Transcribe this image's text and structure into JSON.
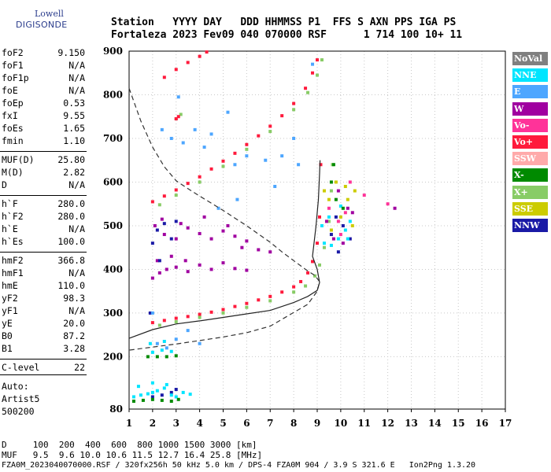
{
  "logo": {
    "line1": "Lowell",
    "line2": "DIGISONDE"
  },
  "header": {
    "row1": "Station   YYYY DAY   DDD HHMMSS P1  FFS S AXN PPS IGA PS",
    "row2": "Fortaleza 2023 Fev09 040 070000 RSF      1 714 100 10+ 11"
  },
  "params": [
    {
      "k": "foF2",
      "v": "9.150"
    },
    {
      "k": "foF1",
      "v": "N/A"
    },
    {
      "k": "foF1p",
      "v": "N/A"
    },
    {
      "k": "foE",
      "v": "N/A"
    },
    {
      "k": "foEp",
      "v": "0.53"
    },
    {
      "k": "fxI",
      "v": "9.55"
    },
    {
      "k": "foEs",
      "v": "1.65"
    },
    {
      "k": "fmin",
      "v": "1.10"
    },
    {
      "k": "MUF(D)",
      "v": "25.80"
    },
    {
      "k": "M(D)",
      "v": "2.82"
    },
    {
      "k": "D",
      "v": "N/A"
    },
    {
      "k": "h`F",
      "v": "280.0"
    },
    {
      "k": "h`F2",
      "v": "280.0"
    },
    {
      "k": "h`E",
      "v": "N/A"
    },
    {
      "k": "h`Es",
      "v": "100.0"
    },
    {
      "k": "hmF2",
      "v": "366.8"
    },
    {
      "k": "hmF1",
      "v": "N/A"
    },
    {
      "k": "hmE",
      "v": "110.0"
    },
    {
      "k": "yF2",
      "v": "98.3"
    },
    {
      "k": "yF1",
      "v": "N/A"
    },
    {
      "k": "yE",
      "v": "20.0"
    },
    {
      "k": "B0",
      "v": "87.2"
    },
    {
      "k": "B1",
      "v": "3.28"
    },
    {
      "k": "C-level",
      "v": "22"
    }
  ],
  "auto": {
    "l1": "Auto:",
    "l2": "Artist5",
    "l3": "500200"
  },
  "footer": {
    "d_row": "D     100  200  400  600  800 1000 1500 3000 [km]",
    "muf_row": "MUF   9.5  9.6 10.0 10.6 11.5 12.7 16.4 25.8 [MHz]",
    "file_row": "FZA0M_2023040070000.RSF / 320fx256h 50 kHz 5.0 km / DPS-4 FZA0M 904 / 3.9 S 321.6 E   Ion2Png 1.3.20"
  },
  "legend": [
    {
      "label": "NoVal",
      "bg": "#808080",
      "fg": "#ffffff"
    },
    {
      "label": "NNE",
      "bg": "#00e5ff",
      "fg": "#ffffff"
    },
    {
      "label": "E",
      "bg": "#4da6ff",
      "fg": "#ffffff"
    },
    {
      "label": "W",
      "bg": "#a000a0",
      "fg": "#ffffff"
    },
    {
      "label": "Vo-",
      "bg": "#ff3399",
      "fg": "#ffffff"
    },
    {
      "label": "Vo+",
      "bg": "#ff1a3c",
      "fg": "#ffffff"
    },
    {
      "label": "SSW",
      "bg": "#ffaaaa",
      "fg": "#ffffff"
    },
    {
      "label": "X-",
      "bg": "#008a00",
      "fg": "#ffffff"
    },
    {
      "label": "X+",
      "bg": "#88cc66",
      "fg": "#ffffff"
    },
    {
      "label": "SSE",
      "bg": "#cccc00",
      "fg": "#ffffff"
    },
    {
      "label": "NNW",
      "bg": "#1a1aa6",
      "fg": "#ffffff"
    }
  ],
  "chart_data": {
    "type": "scatter",
    "xlim": [
      1,
      17
    ],
    "ylim": [
      80,
      900
    ],
    "x_ticks": [
      1,
      2,
      3,
      4,
      5,
      6,
      7,
      8,
      9,
      10,
      11,
      12,
      13,
      14,
      15,
      16,
      17
    ],
    "y_ticks": [
      80,
      200,
      300,
      400,
      500,
      600,
      700,
      800,
      900
    ],
    "grid": true,
    "series": [
      {
        "color": "#ff1a3c",
        "points": [
          [
            2.0,
            278
          ],
          [
            2.5,
            283
          ],
          [
            3.0,
            288
          ],
          [
            3.5,
            292
          ],
          [
            4.0,
            297
          ],
          [
            4.5,
            302
          ],
          [
            5.0,
            308
          ],
          [
            5.5,
            315
          ],
          [
            6.0,
            322
          ],
          [
            6.5,
            330
          ],
          [
            7.0,
            338
          ],
          [
            7.5,
            348
          ],
          [
            8.0,
            360
          ],
          [
            8.3,
            372
          ],
          [
            8.6,
            392
          ],
          [
            8.8,
            418
          ],
          [
            9.0,
            460
          ],
          [
            9.1,
            520
          ],
          [
            9.15,
            640
          ]
        ]
      },
      {
        "color": "#88cc66",
        "points": [
          [
            2.3,
            272
          ],
          [
            3.0,
            280
          ],
          [
            4.0,
            290
          ],
          [
            5.0,
            300
          ],
          [
            6.0,
            313
          ],
          [
            7.0,
            328
          ],
          [
            8.0,
            348
          ],
          [
            8.5,
            362
          ],
          [
            8.9,
            385
          ],
          [
            9.1,
            410
          ],
          [
            9.3,
            450
          ],
          [
            9.5,
            510
          ],
          [
            9.6,
            580
          ],
          [
            9.65,
            640
          ]
        ]
      },
      {
        "color": "#ff1a3c",
        "points": [
          [
            2.0,
            555
          ],
          [
            2.5,
            568
          ],
          [
            3.0,
            582
          ],
          [
            3.5,
            597
          ],
          [
            4.0,
            612
          ],
          [
            4.5,
            630
          ],
          [
            5.0,
            648
          ],
          [
            5.5,
            666
          ],
          [
            6.0,
            686
          ],
          [
            6.5,
            706
          ],
          [
            7.0,
            728
          ],
          [
            7.5,
            752
          ],
          [
            8.0,
            780
          ],
          [
            8.5,
            815
          ],
          [
            8.8,
            850
          ],
          [
            9.0,
            880
          ]
        ]
      },
      {
        "color": "#88cc66",
        "points": [
          [
            2.3,
            548
          ],
          [
            3.0,
            570
          ],
          [
            4.0,
            600
          ],
          [
            5.0,
            636
          ],
          [
            6.0,
            675
          ],
          [
            7.0,
            716
          ],
          [
            8.0,
            766
          ],
          [
            8.6,
            805
          ],
          [
            9.0,
            845
          ],
          [
            9.2,
            880
          ]
        ]
      },
      {
        "color": "#ff1a3c",
        "points": [
          [
            2.5,
            840
          ],
          [
            3.0,
            858
          ],
          [
            3.5,
            874
          ],
          [
            4.0,
            888
          ],
          [
            4.3,
            898
          ]
        ]
      },
      {
        "color": "#88cc66",
        "points": [
          [
            3.0,
            745
          ],
          [
            3.2,
            755
          ]
        ]
      },
      {
        "color": "#ff1a3c",
        "points": [
          [
            3.0,
            745
          ],
          [
            3.1,
            750
          ]
        ]
      },
      {
        "color": "#a000a0",
        "points": [
          [
            2.0,
            380
          ],
          [
            2.3,
            392
          ],
          [
            2.6,
            400
          ],
          [
            3.0,
            405
          ],
          [
            3.5,
            395
          ],
          [
            4.0,
            410
          ],
          [
            4.5,
            400
          ],
          [
            5.0,
            415
          ],
          [
            5.5,
            402
          ],
          [
            6.0,
            398
          ],
          [
            2.2,
            420
          ],
          [
            2.8,
            430
          ],
          [
            3.4,
            420
          ],
          [
            2.1,
            500
          ],
          [
            2.5,
            480
          ],
          [
            3.0,
            470
          ],
          [
            3.5,
            495
          ],
          [
            4.0,
            482
          ],
          [
            4.5,
            470
          ],
          [
            5.0,
            488
          ],
          [
            5.5,
            476
          ],
          [
            6.0,
            465
          ],
          [
            2.4,
            515
          ],
          [
            3.2,
            505
          ],
          [
            4.2,
            520
          ],
          [
            5.2,
            500
          ],
          [
            5.8,
            450
          ],
          [
            6.5,
            445
          ],
          [
            7.0,
            440
          ]
        ]
      },
      {
        "color": "#1a1aa6",
        "points": [
          [
            2.0,
            460
          ],
          [
            2.2,
            490
          ],
          [
            2.5,
            505
          ],
          [
            2.8,
            470
          ],
          [
            3.0,
            510
          ],
          [
            2.3,
            420
          ],
          [
            1.9,
            300
          ],
          [
            2.4,
            112
          ],
          [
            2.8,
            118
          ],
          [
            3.0,
            125
          ],
          [
            2.0,
            108
          ],
          [
            9.6,
            480
          ],
          [
            9.8,
            520
          ],
          [
            10.1,
            500
          ],
          [
            10.4,
            470
          ],
          [
            9.9,
            440
          ]
        ]
      },
      {
        "color": "#4da6ff",
        "points": [
          [
            2.0,
            300
          ],
          [
            2.2,
            230
          ],
          [
            2.6,
            220
          ],
          [
            3.0,
            240
          ],
          [
            3.5,
            260
          ],
          [
            4.0,
            230
          ],
          [
            2.8,
            700
          ],
          [
            3.3,
            690
          ],
          [
            3.8,
            720
          ],
          [
            4.2,
            680
          ],
          [
            4.5,
            710
          ],
          [
            5.2,
            760
          ],
          [
            5.5,
            640
          ],
          [
            6.0,
            660
          ],
          [
            6.8,
            650
          ],
          [
            7.5,
            660
          ],
          [
            8.2,
            640
          ],
          [
            3.1,
            795
          ],
          [
            2.4,
            720
          ],
          [
            4.8,
            540
          ],
          [
            5.6,
            560
          ],
          [
            7.2,
            590
          ],
          [
            8.0,
            700
          ],
          [
            8.8,
            870
          ]
        ]
      },
      {
        "color": "#00e5ff",
        "points": [
          [
            1.2,
            108
          ],
          [
            1.5,
            112
          ],
          [
            1.8,
            115
          ],
          [
            2.0,
            118
          ],
          [
            2.2,
            122
          ],
          [
            2.5,
            128
          ],
          [
            2.8,
            112
          ],
          [
            3.0,
            108
          ],
          [
            3.3,
            118
          ],
          [
            3.6,
            114
          ],
          [
            1.4,
            132
          ],
          [
            2.0,
            140
          ],
          [
            2.6,
            136
          ],
          [
            2.0,
            210
          ],
          [
            2.4,
            215
          ],
          [
            2.8,
            212
          ],
          [
            1.9,
            230
          ],
          [
            2.5,
            235
          ],
          [
            9.3,
            460
          ],
          [
            9.6,
            455
          ],
          [
            9.9,
            470
          ],
          [
            10.2,
            490
          ],
          [
            10.4,
            510
          ],
          [
            9.5,
            520
          ],
          [
            10.0,
            545
          ],
          [
            10.3,
            470
          ],
          [
            9.2,
            500
          ]
        ]
      },
      {
        "color": "#008a00",
        "points": [
          [
            1.2,
            98
          ],
          [
            1.6,
            100
          ],
          [
            2.0,
            102
          ],
          [
            2.4,
            100
          ],
          [
            2.8,
            98
          ],
          [
            3.1,
            102
          ],
          [
            1.8,
            200
          ],
          [
            2.2,
            200
          ],
          [
            2.6,
            200
          ],
          [
            3.0,
            202
          ],
          [
            9.6,
            600
          ],
          [
            9.7,
            640
          ],
          [
            9.8,
            560
          ],
          [
            10.1,
            540
          ]
        ]
      },
      {
        "color": "#cccc00",
        "points": [
          [
            9.3,
            580
          ],
          [
            9.5,
            560
          ],
          [
            9.8,
            600
          ],
          [
            10.0,
            520
          ],
          [
            10.3,
            560
          ],
          [
            10.5,
            500
          ],
          [
            9.6,
            490
          ],
          [
            10.2,
            590
          ],
          [
            10.6,
            580
          ]
        ]
      },
      {
        "color": "#ff3399",
        "points": [
          [
            9.5,
            540
          ],
          [
            9.9,
            510
          ],
          [
            10.2,
            530
          ],
          [
            10.4,
            600
          ],
          [
            10.0,
            480
          ],
          [
            12.0,
            550
          ],
          [
            11.0,
            570
          ]
        ]
      },
      {
        "color": "#a000a0",
        "points": [
          [
            9.4,
            510
          ],
          [
            9.7,
            470
          ],
          [
            10.1,
            460
          ],
          [
            10.3,
            540
          ],
          [
            9.9,
            580
          ],
          [
            10.5,
            530
          ],
          [
            12.3,
            540
          ]
        ]
      }
    ],
    "lines": [
      {
        "color": "#333333",
        "style": "dashed",
        "points": [
          [
            1.0,
            815
          ],
          [
            1.5,
            740
          ],
          [
            2.0,
            680
          ],
          [
            2.5,
            635
          ],
          [
            3.0,
            603
          ],
          [
            3.5,
            585
          ],
          [
            4.0,
            568
          ],
          [
            5.0,
            535
          ],
          [
            6.0,
            500
          ],
          [
            7.0,
            462
          ],
          [
            7.5,
            440
          ],
          [
            8.0,
            420
          ],
          [
            8.5,
            400
          ],
          [
            8.9,
            386
          ],
          [
            9.1,
            372
          ],
          [
            9.0,
            350
          ],
          [
            8.6,
            320
          ],
          [
            7.0,
            270
          ],
          [
            6.0,
            255
          ],
          [
            5.0,
            245
          ],
          [
            4.0,
            237
          ],
          [
            3.0,
            229
          ],
          [
            2.0,
            222
          ],
          [
            1.0,
            215
          ]
        ]
      },
      {
        "color": "#222222",
        "style": "solid",
        "points": [
          [
            1.0,
            242
          ],
          [
            2.0,
            262
          ],
          [
            3.0,
            275
          ],
          [
            4.0,
            282
          ],
          [
            5.0,
            290
          ],
          [
            6.0,
            298
          ],
          [
            7.0,
            306
          ],
          [
            8.0,
            324
          ],
          [
            8.6,
            338
          ],
          [
            9.0,
            352
          ],
          [
            9.1,
            370
          ],
          [
            9.0,
            400
          ],
          [
            8.8,
            430
          ],
          [
            8.95,
            500
          ],
          [
            9.05,
            560
          ],
          [
            9.1,
            620
          ],
          [
            9.12,
            650
          ]
        ]
      }
    ]
  }
}
